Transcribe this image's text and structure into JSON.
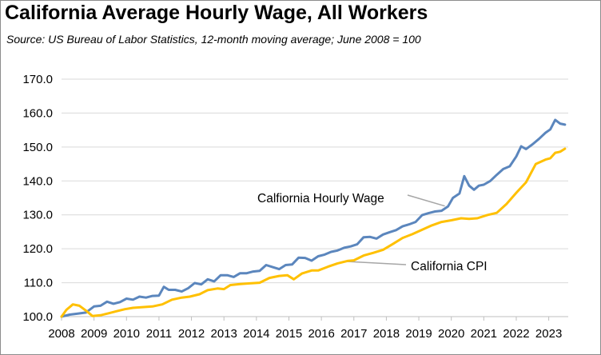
{
  "chart_data": {
    "type": "line",
    "title": "California Average Hourly Wage, All Workers",
    "subtitle": "Source:  US Bureau of Labor Statistics, 12-month moving average; June 2008 = 100",
    "xlabel": "",
    "ylabel": "",
    "xlim": [
      2008,
      2023.6
    ],
    "ylim": [
      100,
      170
    ],
    "yticks": [
      "100.0",
      "110.0",
      "120.0",
      "130.0",
      "140.0",
      "150.0",
      "160.0",
      "170.0"
    ],
    "ytick_values": [
      100,
      110,
      120,
      130,
      140,
      150,
      160,
      170
    ],
    "xticks": [
      "2008",
      "2009",
      "2010",
      "2011",
      "2012",
      "2013",
      "2014",
      "2015",
      "2016",
      "2017",
      "2018",
      "2019",
      "2020",
      "2021",
      "2022",
      "2023"
    ],
    "xtick_values": [
      2008,
      2009,
      2010,
      2011,
      2012,
      2013,
      2014,
      2015,
      2016,
      2017,
      2018,
      2019,
      2020,
      2021,
      2022,
      2023
    ],
    "grid": true,
    "series": [
      {
        "name": "Calfiornia Hourly Wage",
        "color": "#5b86bd",
        "points": [
          [
            2008.0,
            100.0
          ],
          [
            2008.25,
            100.6
          ],
          [
            2008.5,
            100.9
          ],
          [
            2008.75,
            101.2
          ],
          [
            2009.0,
            103.0
          ],
          [
            2009.2,
            103.2
          ],
          [
            2009.4,
            104.4
          ],
          [
            2009.6,
            103.8
          ],
          [
            2009.8,
            104.3
          ],
          [
            2010.0,
            105.3
          ],
          [
            2010.2,
            105.0
          ],
          [
            2010.4,
            105.9
          ],
          [
            2010.6,
            105.6
          ],
          [
            2010.8,
            106.1
          ],
          [
            2011.0,
            106.2
          ],
          [
            2011.15,
            108.8
          ],
          [
            2011.3,
            107.9
          ],
          [
            2011.5,
            107.9
          ],
          [
            2011.7,
            107.4
          ],
          [
            2011.9,
            108.4
          ],
          [
            2012.1,
            109.9
          ],
          [
            2012.3,
            109.5
          ],
          [
            2012.5,
            111.0
          ],
          [
            2012.7,
            110.4
          ],
          [
            2012.9,
            112.2
          ],
          [
            2013.1,
            112.2
          ],
          [
            2013.3,
            111.7
          ],
          [
            2013.5,
            112.8
          ],
          [
            2013.7,
            112.8
          ],
          [
            2013.9,
            113.3
          ],
          [
            2014.1,
            113.5
          ],
          [
            2014.3,
            115.2
          ],
          [
            2014.5,
            114.6
          ],
          [
            2014.7,
            114.0
          ],
          [
            2014.9,
            115.2
          ],
          [
            2015.1,
            115.4
          ],
          [
            2015.3,
            117.4
          ],
          [
            2015.5,
            117.3
          ],
          [
            2015.7,
            116.5
          ],
          [
            2015.9,
            117.8
          ],
          [
            2016.1,
            118.3
          ],
          [
            2016.3,
            119.1
          ],
          [
            2016.5,
            119.5
          ],
          [
            2016.7,
            120.3
          ],
          [
            2016.9,
            120.7
          ],
          [
            2017.1,
            121.3
          ],
          [
            2017.3,
            123.4
          ],
          [
            2017.5,
            123.5
          ],
          [
            2017.7,
            123.0
          ],
          [
            2017.9,
            124.2
          ],
          [
            2018.1,
            124.9
          ],
          [
            2018.3,
            125.5
          ],
          [
            2018.5,
            126.6
          ],
          [
            2018.7,
            127.2
          ],
          [
            2018.9,
            127.9
          ],
          [
            2019.1,
            129.9
          ],
          [
            2019.3,
            130.5
          ],
          [
            2019.5,
            131.0
          ],
          [
            2019.7,
            131.2
          ],
          [
            2019.9,
            132.5
          ],
          [
            2020.05,
            135.0
          ],
          [
            2020.25,
            136.3
          ],
          [
            2020.4,
            141.4
          ],
          [
            2020.55,
            138.6
          ],
          [
            2020.7,
            137.4
          ],
          [
            2020.85,
            138.6
          ],
          [
            2021.0,
            138.9
          ],
          [
            2021.2,
            140.0
          ],
          [
            2021.4,
            141.8
          ],
          [
            2021.6,
            143.5
          ],
          [
            2021.8,
            144.3
          ],
          [
            2022.0,
            147.2
          ],
          [
            2022.15,
            150.2
          ],
          [
            2022.3,
            149.4
          ],
          [
            2022.5,
            150.8
          ],
          [
            2022.7,
            152.4
          ],
          [
            2022.9,
            154.2
          ],
          [
            2023.05,
            155.2
          ],
          [
            2023.2,
            158.0
          ],
          [
            2023.35,
            156.9
          ],
          [
            2023.5,
            156.6
          ]
        ]
      },
      {
        "name": "California CPI",
        "color": "#ffc000",
        "points": [
          [
            2008.0,
            100.0
          ],
          [
            2008.15,
            102.0
          ],
          [
            2008.35,
            103.6
          ],
          [
            2008.55,
            103.2
          ],
          [
            2008.75,
            101.8
          ],
          [
            2008.95,
            100.2
          ],
          [
            2009.2,
            100.4
          ],
          [
            2009.45,
            101.0
          ],
          [
            2009.7,
            101.6
          ],
          [
            2009.95,
            102.2
          ],
          [
            2010.2,
            102.6
          ],
          [
            2010.5,
            102.8
          ],
          [
            2010.8,
            103.0
          ],
          [
            2011.1,
            103.6
          ],
          [
            2011.4,
            105.0
          ],
          [
            2011.7,
            105.6
          ],
          [
            2011.95,
            105.9
          ],
          [
            2012.25,
            106.6
          ],
          [
            2012.5,
            107.8
          ],
          [
            2012.8,
            108.3
          ],
          [
            2013.0,
            108.1
          ],
          [
            2013.2,
            109.3
          ],
          [
            2013.5,
            109.6
          ],
          [
            2013.8,
            109.8
          ],
          [
            2014.1,
            110.0
          ],
          [
            2014.4,
            111.4
          ],
          [
            2014.7,
            112.0
          ],
          [
            2014.95,
            112.2
          ],
          [
            2015.15,
            111.0
          ],
          [
            2015.4,
            112.7
          ],
          [
            2015.7,
            113.6
          ],
          [
            2015.9,
            113.6
          ],
          [
            2016.2,
            114.7
          ],
          [
            2016.5,
            115.7
          ],
          [
            2016.8,
            116.4
          ],
          [
            2017.0,
            116.6
          ],
          [
            2017.3,
            118.0
          ],
          [
            2017.6,
            118.8
          ],
          [
            2017.9,
            119.7
          ],
          [
            2018.2,
            121.4
          ],
          [
            2018.5,
            123.2
          ],
          [
            2018.8,
            124.3
          ],
          [
            2019.1,
            125.6
          ],
          [
            2019.4,
            126.9
          ],
          [
            2019.7,
            127.9
          ],
          [
            2020.0,
            128.4
          ],
          [
            2020.3,
            129.0
          ],
          [
            2020.55,
            128.8
          ],
          [
            2020.8,
            129.0
          ],
          [
            2021.1,
            129.9
          ],
          [
            2021.4,
            130.6
          ],
          [
            2021.7,
            133.2
          ],
          [
            2022.0,
            136.5
          ],
          [
            2022.3,
            139.6
          ],
          [
            2022.6,
            145.0
          ],
          [
            2022.9,
            146.3
          ],
          [
            2023.05,
            146.7
          ],
          [
            2023.2,
            148.3
          ],
          [
            2023.35,
            148.6
          ],
          [
            2023.5,
            149.5
          ]
        ]
      }
    ],
    "annotations": [
      {
        "text": "Calfiornia Hourly Wage",
        "series": "Calfiornia Hourly Wage",
        "point": [
          2019.8,
          132.6
        ]
      },
      {
        "text": "California CPI",
        "series": "California CPI",
        "point": [
          2016.7,
          116.3
        ]
      }
    ]
  }
}
